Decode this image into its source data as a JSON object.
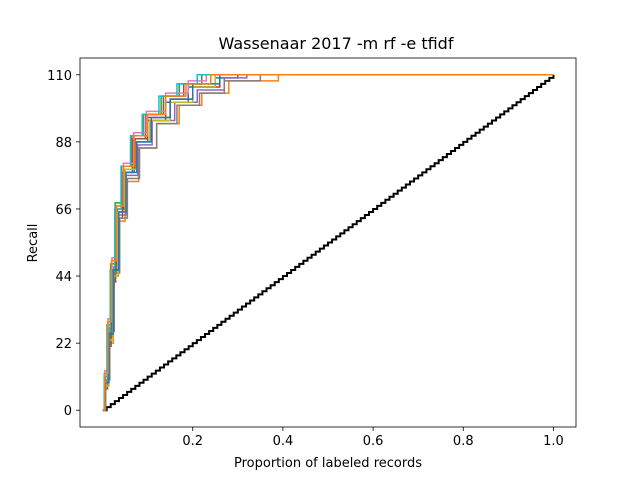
{
  "chart_data": {
    "type": "line",
    "title": "Wassenaar 2017 -m rf -e tfidf",
    "xlabel": "Proportion of labeled records",
    "ylabel": "Recall",
    "xlim": [
      -0.05,
      1.05
    ],
    "ylim": [
      -5.5,
      115.5
    ],
    "xticks": [
      0.2,
      0.4,
      0.6,
      0.8,
      1.0
    ],
    "xtick_labels": [
      "0.2",
      "0.4",
      "0.6",
      "0.8",
      "1.0"
    ],
    "yticks": [
      0,
      22,
      44,
      66,
      88,
      110
    ],
    "ytick_labels": [
      "0",
      "22",
      "44",
      "66",
      "88",
      "110"
    ],
    "grid": false,
    "legend": "none",
    "baseline": {
      "description": "random (diagonal)",
      "color": "#000000",
      "points": [
        [
          0,
          0
        ],
        [
          1.0,
          110
        ]
      ]
    },
    "palette": [
      "#1f77b4",
      "#ff7f0e",
      "#2ca02c",
      "#d62728",
      "#9467bd",
      "#8c564b",
      "#e377c2",
      "#7f7f7f",
      "#bcbd22",
      "#17becf"
    ],
    "runs": [
      {
        "points": [
          [
            0,
            0
          ],
          [
            0.005,
            10
          ],
          [
            0.012,
            25
          ],
          [
            0.02,
            45
          ],
          [
            0.03,
            65
          ],
          [
            0.045,
            78
          ],
          [
            0.07,
            88
          ],
          [
            0.1,
            95
          ],
          [
            0.14,
            101
          ],
          [
            0.19,
            106
          ],
          [
            0.25,
            109
          ],
          [
            0.3,
            110
          ],
          [
            1.0,
            110
          ]
        ]
      },
      {
        "points": [
          [
            0,
            0
          ],
          [
            0.006,
            8
          ],
          [
            0.014,
            22
          ],
          [
            0.024,
            44
          ],
          [
            0.035,
            62
          ],
          [
            0.05,
            75
          ],
          [
            0.08,
            86
          ],
          [
            0.12,
            94
          ],
          [
            0.17,
            100
          ],
          [
            0.22,
            104
          ],
          [
            0.28,
            108
          ],
          [
            0.39,
            110
          ],
          [
            1.0,
            110
          ]
        ]
      },
      {
        "points": [
          [
            0,
            0
          ],
          [
            0.004,
            12
          ],
          [
            0.01,
            28
          ],
          [
            0.018,
            48
          ],
          [
            0.028,
            68
          ],
          [
            0.042,
            80
          ],
          [
            0.065,
            90
          ],
          [
            0.09,
            97
          ],
          [
            0.13,
            103
          ],
          [
            0.17,
            107
          ],
          [
            0.22,
            110
          ],
          [
            1.0,
            110
          ]
        ]
      },
      {
        "points": [
          [
            0,
            0
          ],
          [
            0.005,
            9
          ],
          [
            0.013,
            24
          ],
          [
            0.022,
            46
          ],
          [
            0.033,
            66
          ],
          [
            0.048,
            79
          ],
          [
            0.072,
            89
          ],
          [
            0.1,
            96
          ],
          [
            0.15,
            102
          ],
          [
            0.2,
            106
          ],
          [
            0.26,
            110
          ],
          [
            1.0,
            110
          ]
        ]
      },
      {
        "points": [
          [
            0,
            0
          ],
          [
            0.006,
            11
          ],
          [
            0.015,
            27
          ],
          [
            0.025,
            47
          ],
          [
            0.036,
            64
          ],
          [
            0.052,
            77
          ],
          [
            0.078,
            87
          ],
          [
            0.11,
            95
          ],
          [
            0.16,
            101
          ],
          [
            0.21,
            105
          ],
          [
            0.27,
            109
          ],
          [
            0.32,
            110
          ],
          [
            1.0,
            110
          ]
        ]
      },
      {
        "points": [
          [
            0,
            0
          ],
          [
            0.004,
            7
          ],
          [
            0.011,
            21
          ],
          [
            0.019,
            42
          ],
          [
            0.029,
            63
          ],
          [
            0.044,
            78
          ],
          [
            0.066,
            89
          ],
          [
            0.095,
            97
          ],
          [
            0.135,
            103
          ],
          [
            0.18,
            107
          ],
          [
            0.24,
            110
          ],
          [
            1.0,
            110
          ]
        ]
      },
      {
        "points": [
          [
            0,
            0
          ],
          [
            0.005,
            13
          ],
          [
            0.012,
            30
          ],
          [
            0.021,
            50
          ],
          [
            0.031,
            67
          ],
          [
            0.046,
            81
          ],
          [
            0.069,
            91
          ],
          [
            0.097,
            98
          ],
          [
            0.14,
            104
          ],
          [
            0.19,
            108
          ],
          [
            0.23,
            110
          ],
          [
            1.0,
            110
          ]
        ]
      },
      {
        "points": [
          [
            0,
            0
          ],
          [
            0.007,
            10
          ],
          [
            0.016,
            26
          ],
          [
            0.026,
            45
          ],
          [
            0.038,
            63
          ],
          [
            0.055,
            76
          ],
          [
            0.082,
            86
          ],
          [
            0.12,
            94
          ],
          [
            0.165,
            100
          ],
          [
            0.215,
            104
          ],
          [
            0.27,
            108
          ],
          [
            0.35,
            110
          ],
          [
            1.0,
            110
          ]
        ]
      },
      {
        "points": [
          [
            0,
            0
          ],
          [
            0.005,
            8
          ],
          [
            0.013,
            23
          ],
          [
            0.023,
            44
          ],
          [
            0.034,
            65
          ],
          [
            0.05,
            79
          ],
          [
            0.075,
            88
          ],
          [
            0.105,
            95
          ],
          [
            0.15,
            101
          ],
          [
            0.2,
            106
          ],
          [
            0.25,
            110
          ],
          [
            1.0,
            110
          ]
        ]
      },
      {
        "points": [
          [
            0,
            0
          ],
          [
            0.004,
            11
          ],
          [
            0.01,
            26
          ],
          [
            0.017,
            46
          ],
          [
            0.027,
            66
          ],
          [
            0.041,
            80
          ],
          [
            0.062,
            90
          ],
          [
            0.088,
            97
          ],
          [
            0.125,
            103
          ],
          [
            0.165,
            107
          ],
          [
            0.21,
            110
          ],
          [
            1.0,
            110
          ]
        ]
      },
      {
        "points": [
          [
            0,
            0
          ],
          [
            0.006,
            9
          ],
          [
            0.014,
            25
          ],
          [
            0.024,
            46
          ],
          [
            0.036,
            65
          ],
          [
            0.052,
            78
          ],
          [
            0.076,
            88
          ],
          [
            0.108,
            96
          ],
          [
            0.15,
            102
          ],
          [
            0.2,
            107
          ],
          [
            0.26,
            110
          ],
          [
            1.0,
            110
          ]
        ]
      },
      {
        "points": [
          [
            0,
            0
          ],
          [
            0.005,
            12
          ],
          [
            0.012,
            29
          ],
          [
            0.02,
            49
          ],
          [
            0.031,
            67
          ],
          [
            0.047,
            80
          ],
          [
            0.07,
            90
          ],
          [
            0.1,
            97
          ],
          [
            0.14,
            103
          ],
          [
            0.185,
            107
          ],
          [
            0.24,
            110
          ],
          [
            1.0,
            110
          ]
        ]
      }
    ]
  }
}
